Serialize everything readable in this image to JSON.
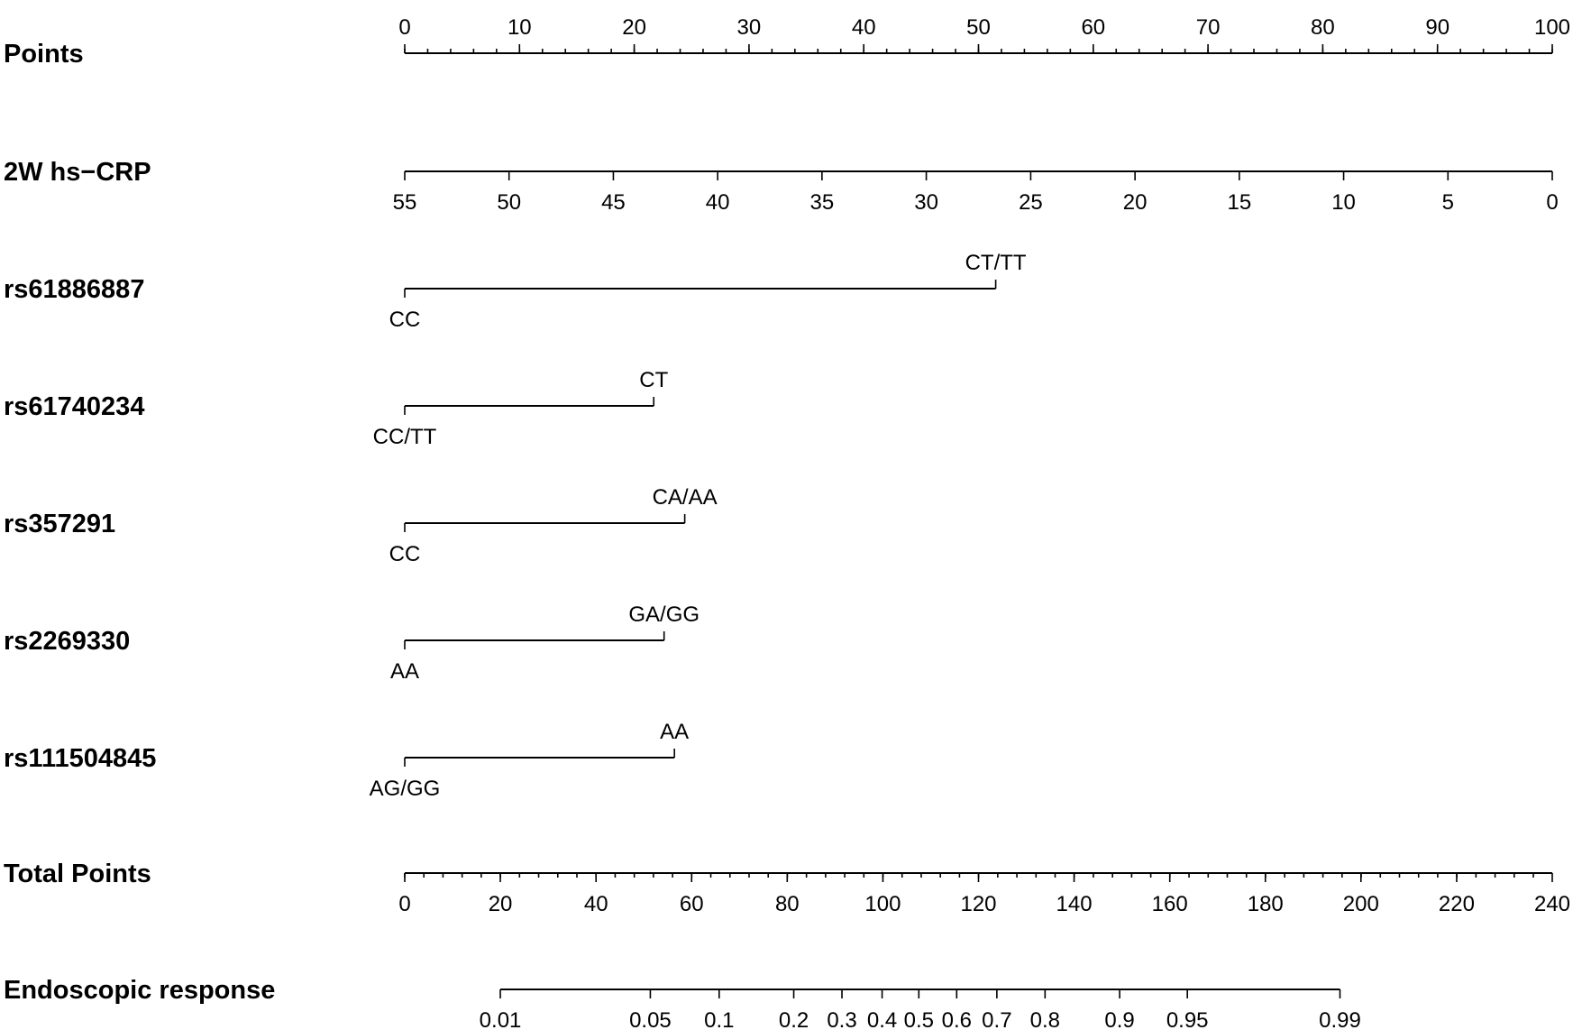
{
  "chart_data": {
    "type": "nomogram",
    "rows": [
      {
        "id": "points",
        "label": "Points",
        "kind": "numeric",
        "label_side": "above",
        "points_range": [
          0,
          100
        ],
        "ticks": [
          {
            "value": 0,
            "points": 0,
            "label": "0"
          },
          {
            "value": 10,
            "points": 10,
            "label": "10"
          },
          {
            "value": 20,
            "points": 20,
            "label": "20"
          },
          {
            "value": 30,
            "points": 30,
            "label": "30"
          },
          {
            "value": 40,
            "points": 40,
            "label": "40"
          },
          {
            "value": 50,
            "points": 50,
            "label": "50"
          },
          {
            "value": 60,
            "points": 60,
            "label": "60"
          },
          {
            "value": 70,
            "points": 70,
            "label": "70"
          },
          {
            "value": 80,
            "points": 80,
            "label": "80"
          },
          {
            "value": 90,
            "points": 90,
            "label": "90"
          },
          {
            "value": 100,
            "points": 100,
            "label": "100"
          }
        ],
        "minor_step_points": 2
      },
      {
        "id": "hscrp",
        "label": "2W hs−CRP",
        "kind": "numeric",
        "label_side": "below",
        "points_range": [
          0,
          100
        ],
        "ticks": [
          {
            "value": 55,
            "points": 0,
            "label": "55"
          },
          {
            "value": 50,
            "points": 9.09,
            "label": "50"
          },
          {
            "value": 45,
            "points": 18.18,
            "label": "45"
          },
          {
            "value": 40,
            "points": 27.27,
            "label": "40"
          },
          {
            "value": 35,
            "points": 36.36,
            "label": "35"
          },
          {
            "value": 30,
            "points": 45.45,
            "label": "30"
          },
          {
            "value": 25,
            "points": 54.55,
            "label": "25"
          },
          {
            "value": 20,
            "points": 63.64,
            "label": "20"
          },
          {
            "value": 15,
            "points": 72.73,
            "label": "15"
          },
          {
            "value": 10,
            "points": 81.82,
            "label": "10"
          },
          {
            "value": 5,
            "points": 90.91,
            "label": "5"
          },
          {
            "value": 0,
            "points": 100,
            "label": "0"
          }
        ]
      },
      {
        "id": "rs61886887",
        "label": "rs61886887",
        "kind": "categorical",
        "levels": [
          {
            "label": "CC",
            "points": 0,
            "label_side": "below"
          },
          {
            "label": "CT/TT",
            "points": 51.5,
            "label_side": "above"
          }
        ]
      },
      {
        "id": "rs61740234",
        "label": "rs61740234",
        "kind": "categorical",
        "levels": [
          {
            "label": "CC/TT",
            "points": 0,
            "label_side": "below"
          },
          {
            "label": "CT",
            "points": 21.7,
            "label_side": "above"
          }
        ]
      },
      {
        "id": "rs357291",
        "label": "rs357291",
        "kind": "categorical",
        "levels": [
          {
            "label": "CC",
            "points": 0,
            "label_side": "below"
          },
          {
            "label": "CA/AA",
            "points": 24.4,
            "label_side": "above"
          }
        ]
      },
      {
        "id": "rs2269330",
        "label": "rs2269330",
        "kind": "categorical",
        "levels": [
          {
            "label": "AA",
            "points": 0,
            "label_side": "below"
          },
          {
            "label": "GA/GG",
            "points": 22.6,
            "label_side": "above"
          }
        ]
      },
      {
        "id": "rs111504845",
        "label": "rs111504845",
        "kind": "categorical",
        "levels": [
          {
            "label": "AG/GG",
            "points": 0,
            "label_side": "below"
          },
          {
            "label": "AA",
            "points": 23.5,
            "label_side": "above"
          }
        ]
      },
      {
        "id": "total",
        "label": "Total Points",
        "kind": "numeric",
        "label_side": "below",
        "points_range": [
          0,
          100
        ],
        "ticks": [
          {
            "value": 0,
            "points": 0,
            "label": "0"
          },
          {
            "value": 20,
            "points": 8.33,
            "label": "20"
          },
          {
            "value": 40,
            "points": 16.67,
            "label": "40"
          },
          {
            "value": 60,
            "points": 25,
            "label": "60"
          },
          {
            "value": 80,
            "points": 33.33,
            "label": "80"
          },
          {
            "value": 100,
            "points": 41.67,
            "label": "100"
          },
          {
            "value": 120,
            "points": 50,
            "label": "120"
          },
          {
            "value": 140,
            "points": 58.33,
            "label": "140"
          },
          {
            "value": 160,
            "points": 66.67,
            "label": "160"
          },
          {
            "value": 180,
            "points": 75,
            "label": "180"
          },
          {
            "value": 200,
            "points": 83.33,
            "label": "200"
          },
          {
            "value": 220,
            "points": 91.67,
            "label": "220"
          },
          {
            "value": 240,
            "points": 100,
            "label": "240"
          }
        ],
        "minor_step_points": 1.667
      },
      {
        "id": "response",
        "label": "Endoscopic response",
        "kind": "numeric",
        "label_side": "below",
        "points_range": [
          8.33,
          81.5
        ],
        "ticks": [
          {
            "value": 0.01,
            "points": 8.33,
            "label": "0.01"
          },
          {
            "value": 0.05,
            "points": 21.4,
            "label": "0.05"
          },
          {
            "value": 0.1,
            "points": 27.4,
            "label": "0.1"
          },
          {
            "value": 0.2,
            "points": 33.9,
            "label": "0.2"
          },
          {
            "value": 0.3,
            "points": 38.1,
            "label": "0.3"
          },
          {
            "value": 0.4,
            "points": 41.6,
            "label": "0.4"
          },
          {
            "value": 0.5,
            "points": 44.8,
            "label": "0.5"
          },
          {
            "value": 0.6,
            "points": 48.1,
            "label": "0.6"
          },
          {
            "value": 0.7,
            "points": 51.6,
            "label": "0.7"
          },
          {
            "value": 0.8,
            "points": 55.8,
            "label": "0.8"
          },
          {
            "value": 0.9,
            "points": 62.3,
            "label": "0.9"
          },
          {
            "value": 0.95,
            "points": 68.2,
            "label": "0.95"
          },
          {
            "value": 0.99,
            "points": 81.5,
            "label": "0.99"
          }
        ]
      }
    ]
  }
}
